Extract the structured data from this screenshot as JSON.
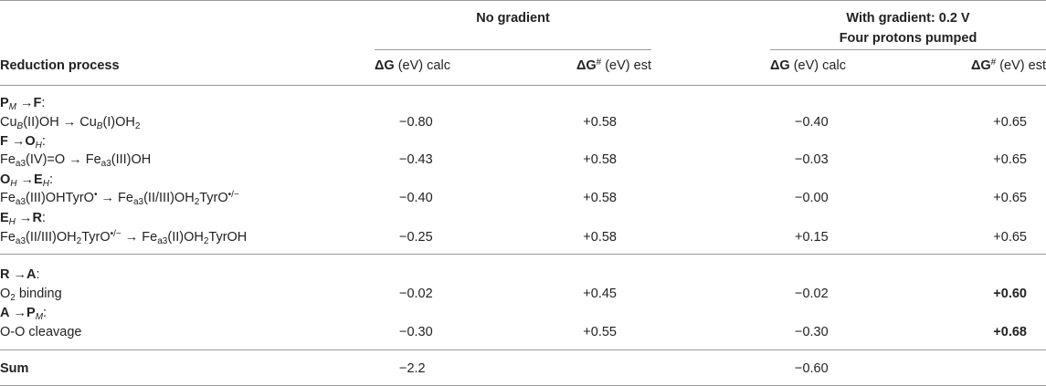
{
  "header": {
    "group_no_gradient": "No gradient",
    "group_gradient_line1": "With gradient: 0.2 V",
    "group_gradient_line2": "Four protons pumped",
    "col_process": "Reduction process",
    "dG_symbol": "ΔG",
    "dG_unit": " (eV) calc",
    "dGh_symbol": "ΔG",
    "dGh_sup": "#",
    "dGh_unit": " (eV) est"
  },
  "rows": [
    {
      "step_a": "P",
      "step_a_sub": "M",
      "arrow": " →",
      "step_b": "F",
      "colon": ":",
      "reaction": {
        "p1": "Cu",
        "s1": "B",
        "p2": "(II)OH → Cu",
        "s2": "B",
        "p3": "(I)OH",
        "s3": "2"
      },
      "dg_ng": "−0.80",
      "dgh_ng": "+0.58",
      "dg_g": "−0.40",
      "dgh_g": "+0.65"
    },
    {
      "step_a": "F",
      "arrow": " →",
      "step_b": "O",
      "step_b_sub": "H",
      "colon": ":",
      "reaction": {
        "p1": "Fe",
        "s1": "a3",
        "p2": "(IV)=O → Fe",
        "s2": "a3",
        "p3": "(III)OH"
      },
      "dg_ng": "−0.43",
      "dgh_ng": "+0.58",
      "dg_g": "−0.03",
      "dgh_g": "+0.65"
    },
    {
      "step_a": "O",
      "step_a_sub": "H",
      "arrow": " →",
      "step_b": "E",
      "step_b_sub": "H",
      "colon": ":",
      "reaction": {
        "p1": "Fe",
        "s1": "a3",
        "p2": "(III)OHTyrO",
        "sup1": "•",
        "p3": " → Fe",
        "s3": "a3",
        "p4": "(II/III)OH",
        "s4": "2",
        "p5": "TyrO",
        "sup2": "•/−"
      },
      "dg_ng": "−0.40",
      "dgh_ng": "+0.58",
      "dg_g": "−0.00",
      "dgh_g": "+0.65"
    },
    {
      "step_a": "E",
      "step_a_sub": "H",
      "arrow": " →",
      "step_b": "R",
      "colon": ":",
      "reaction": {
        "p1": "Fe",
        "s1": "a3",
        "p2": "(II/III)OH",
        "s2": "2",
        "p3": "TyrO",
        "sup1": "•/−",
        "p4": " → Fe",
        "s4": "a3",
        "p5": "(II)OH",
        "s5": "2",
        "p6": "TyrOH"
      },
      "dg_ng": "−0.25",
      "dgh_ng": "+0.58",
      "dg_g": "+0.15",
      "dgh_g": "+0.65"
    },
    {
      "step_a": "R",
      "arrow": " →",
      "step_b": "A",
      "colon": ":",
      "reaction": {
        "p1": "O",
        "s1": "2",
        "p2": " binding"
      },
      "dg_ng": "−0.02",
      "dgh_ng": "+0.45",
      "dg_g": "−0.02",
      "dgh_g": "+0.60",
      "dgh_g_bold": true
    },
    {
      "step_a": "A",
      "arrow": " →",
      "step_b": "P",
      "step_b_sub": "M",
      "colon": ":",
      "reaction": {
        "p1": "O-O cleavage"
      },
      "dg_ng": "−0.30",
      "dgh_ng": "+0.55",
      "dg_g": "−0.30",
      "dgh_g": "+0.68",
      "dgh_g_bold": true
    }
  ],
  "sum": {
    "label": "Sum",
    "dg_ng": "−2.2",
    "dg_g": "−0.60"
  }
}
